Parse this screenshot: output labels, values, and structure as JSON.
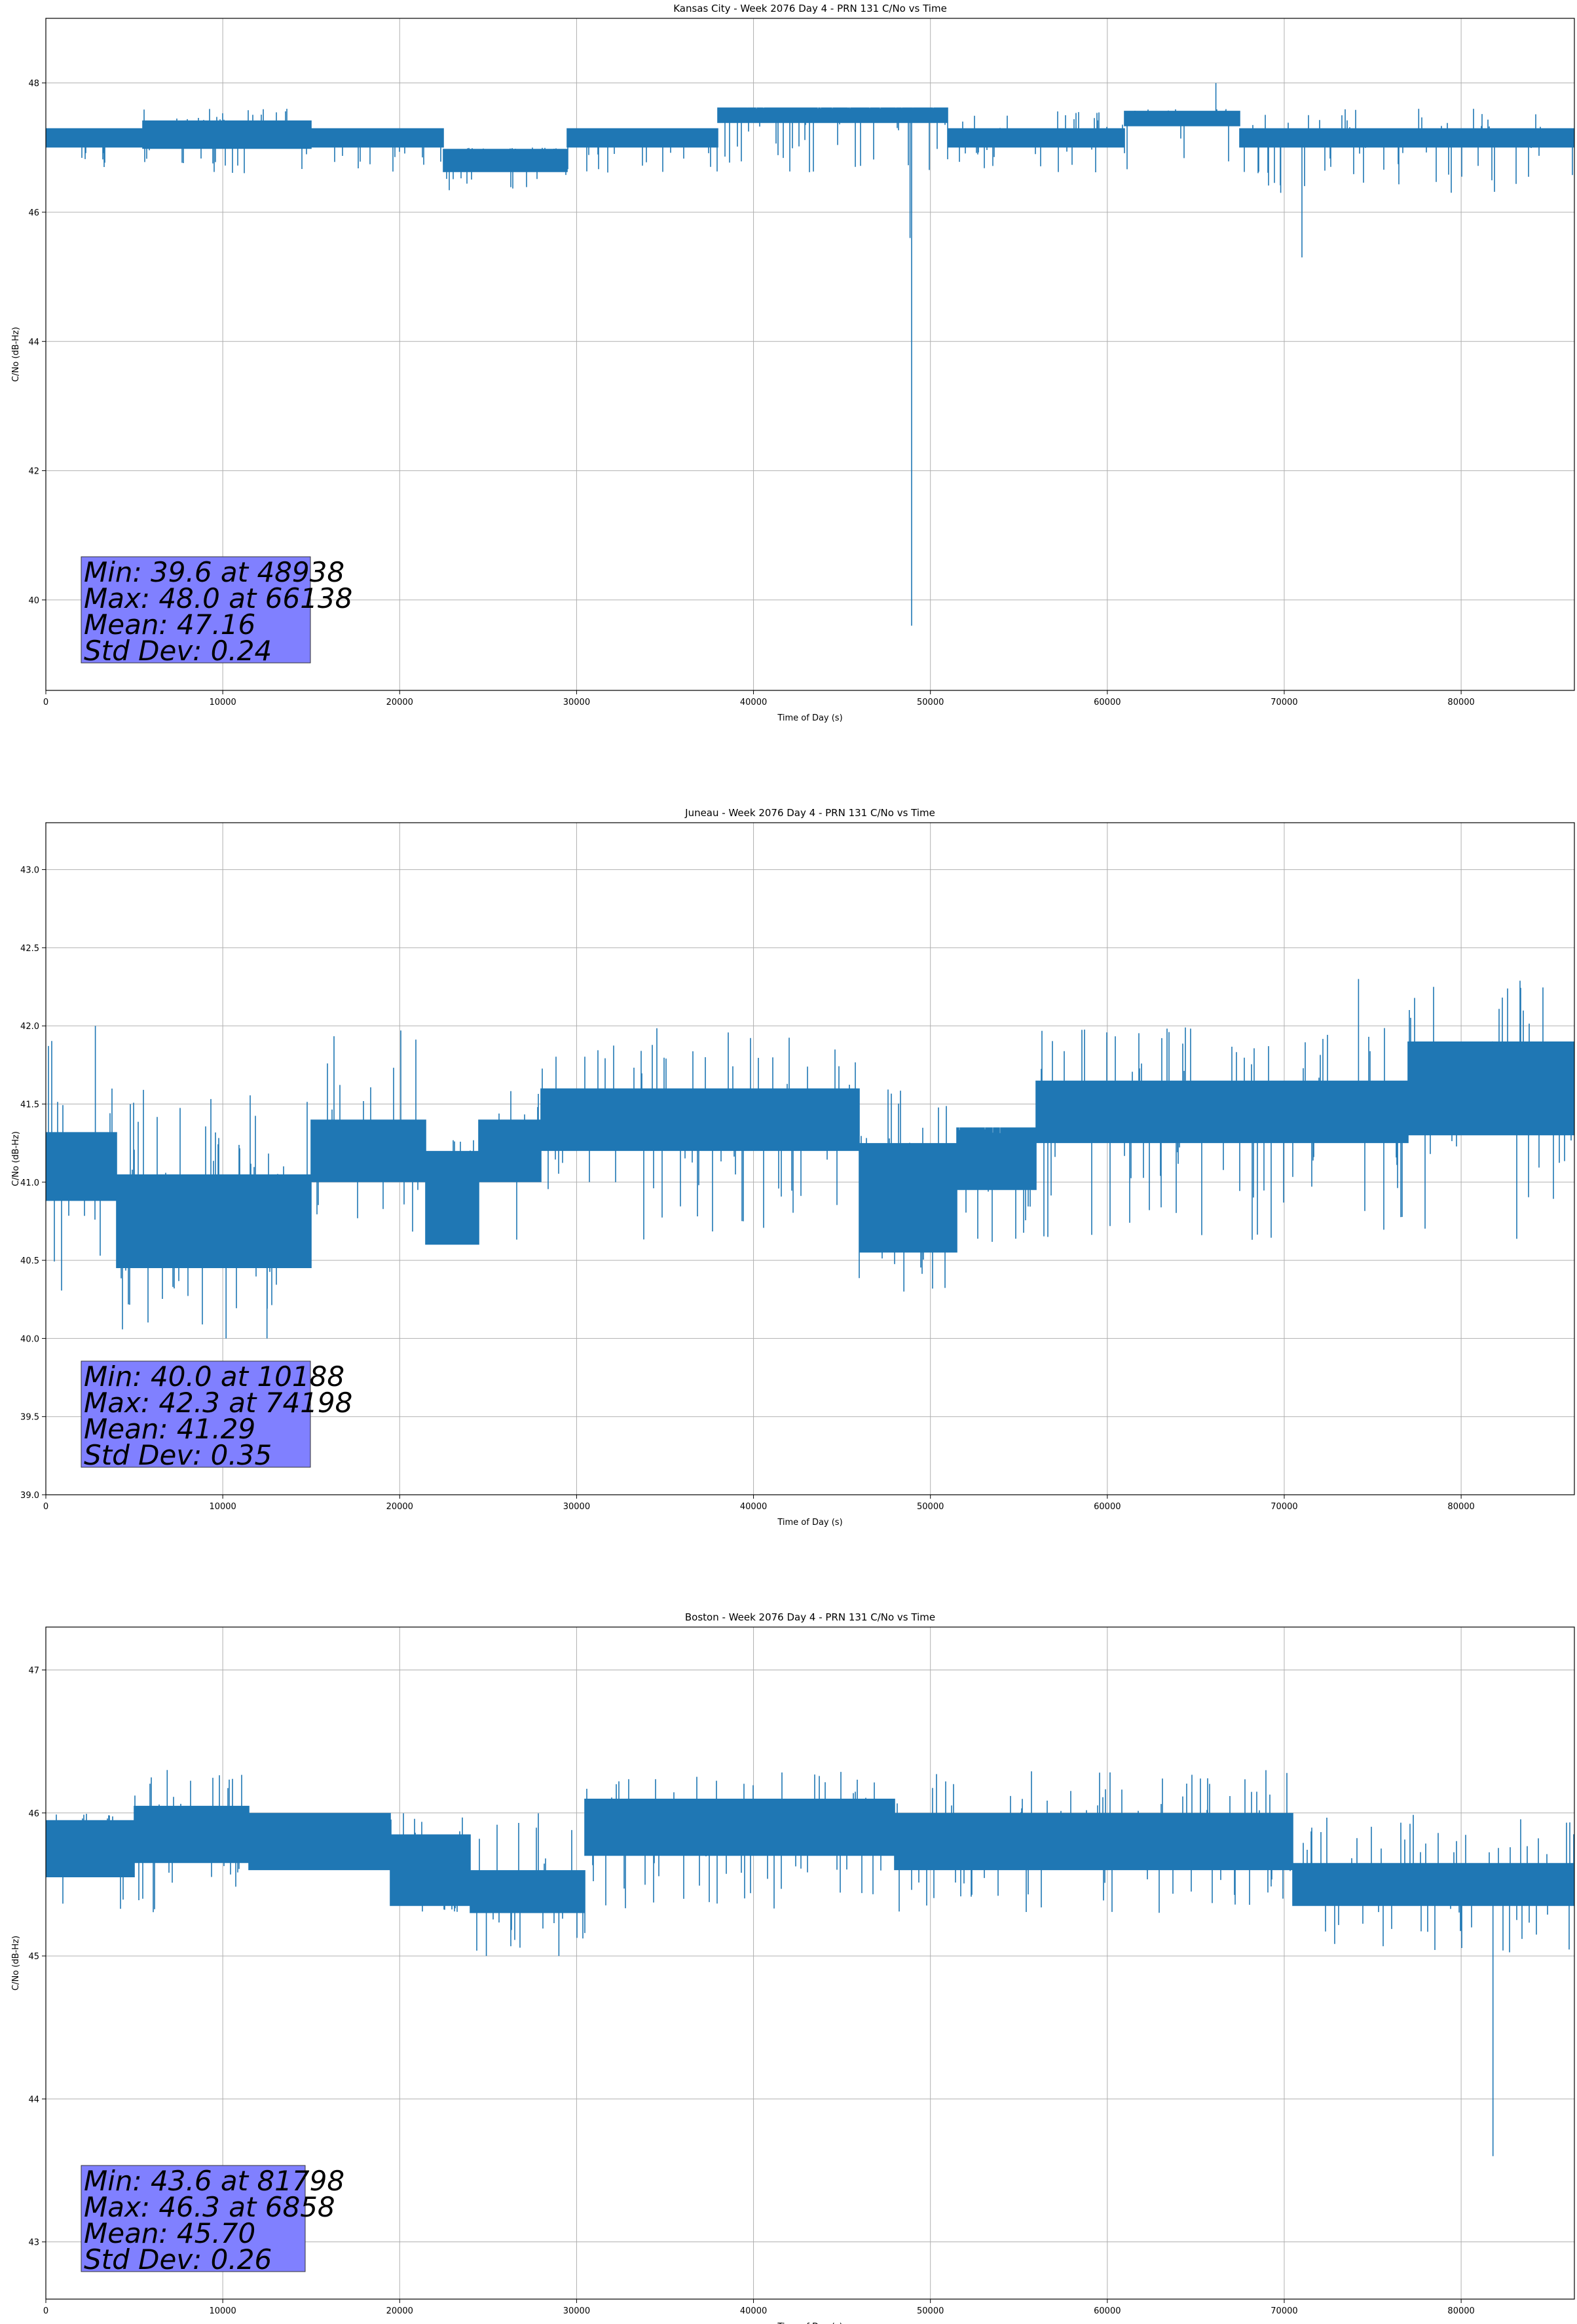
{
  "colors": {
    "line": "#1f77b4",
    "stats_box": "#8080ff",
    "grid": "#b0b0b0"
  },
  "chart_data": [
    {
      "type": "line",
      "title": "Kansas City - Week 2076 Day 4 - PRN 131 C/No vs Time",
      "xlabel": "Time of Day (s)",
      "ylabel": "C/No (dB-Hz)",
      "xlim": [
        0,
        86400
      ],
      "ylim": [
        38.6,
        49.0
      ],
      "xticks": [
        0,
        10000,
        20000,
        30000,
        40000,
        50000,
        60000,
        70000,
        80000
      ],
      "yticks": [
        40,
        42,
        44,
        46,
        48
      ],
      "grid": true,
      "series": [
        {
          "bands": [
            {
              "x": [
                0,
                5500
              ],
              "center": 47.15,
              "half": 0.15,
              "lo": 46.6,
              "hi": 47.3
            },
            {
              "x": [
                5500,
                15000
              ],
              "center": 47.2,
              "half": 0.22,
              "lo": 46.6,
              "hi": 47.6
            },
            {
              "x": [
                15000,
                22500
              ],
              "center": 47.15,
              "half": 0.15,
              "lo": 46.6,
              "hi": 47.3
            },
            {
              "x": [
                22500,
                29500
              ],
              "center": 46.8,
              "half": 0.18,
              "lo": 46.3,
              "hi": 47.0
            },
            {
              "x": [
                29500,
                38000
              ],
              "center": 47.15,
              "half": 0.15,
              "lo": 46.6,
              "hi": 47.3
            },
            {
              "x": [
                38000,
                51000
              ],
              "center": 47.5,
              "half": 0.12,
              "lo": 46.6,
              "hi": 47.6
            },
            {
              "x": [
                51000,
                61000
              ],
              "center": 47.15,
              "half": 0.15,
              "lo": 46.6,
              "hi": 47.6
            },
            {
              "x": [
                61000,
                67500
              ],
              "center": 47.45,
              "half": 0.12,
              "lo": 46.6,
              "hi": 47.6
            },
            {
              "x": [
                67500,
                86400
              ],
              "center": 47.15,
              "half": 0.15,
              "lo": 46.3,
              "hi": 47.6
            }
          ],
          "spikes": [
            {
              "x": 48938,
              "y": 39.6
            },
            {
              "x": 48850,
              "y": 45.6
            },
            {
              "x": 66138,
              "y": 48.0
            },
            {
              "x": 71000,
              "y": 45.3
            },
            {
              "x": 69800,
              "y": 46.3
            },
            {
              "x": 77600,
              "y": 47.6
            },
            {
              "x": 80700,
              "y": 47.6
            }
          ]
        }
      ],
      "stats": [
        "Min: 39.6 at 48938",
        "Max: 48.0 at 66138",
        "Mean: 47.16",
        "Std Dev: 0.24"
      ]
    },
    {
      "type": "line",
      "title": "Juneau - Week 2076 Day 4 - PRN 131 C/No vs Time",
      "xlabel": "Time of Day (s)",
      "ylabel": "C/No (dB-Hz)",
      "xlim": [
        0,
        86400
      ],
      "ylim": [
        39.0,
        43.3
      ],
      "xticks": [
        0,
        10000,
        20000,
        30000,
        40000,
        50000,
        60000,
        70000,
        80000
      ],
      "yticks": [
        39.0,
        39.5,
        40.0,
        40.5,
        41.0,
        41.5,
        42.0,
        42.5,
        43.0
      ],
      "grid": true,
      "series": [
        {
          "bands": [
            {
              "x": [
                0,
                4000
              ],
              "center": 41.1,
              "half": 0.22,
              "lo": 40.3,
              "hi": 42.0
            },
            {
              "x": [
                4000,
                15000
              ],
              "center": 40.75,
              "half": 0.3,
              "lo": 40.0,
              "hi": 41.6
            },
            {
              "x": [
                15000,
                21500
              ],
              "center": 41.2,
              "half": 0.2,
              "lo": 40.6,
              "hi": 42.0
            },
            {
              "x": [
                21500,
                24500
              ],
              "center": 40.9,
              "half": 0.3,
              "lo": 40.6,
              "hi": 41.3
            },
            {
              "x": [
                24500,
                28000
              ],
              "center": 41.2,
              "half": 0.2,
              "lo": 40.6,
              "hi": 41.6
            },
            {
              "x": [
                28000,
                46000
              ],
              "center": 41.4,
              "half": 0.2,
              "lo": 40.6,
              "hi": 42.0
            },
            {
              "x": [
                46000,
                51500
              ],
              "center": 40.9,
              "half": 0.35,
              "lo": 40.3,
              "hi": 41.6
            },
            {
              "x": [
                51500,
                56000
              ],
              "center": 41.15,
              "half": 0.2,
              "lo": 40.6,
              "hi": 41.3
            },
            {
              "x": [
                56000,
                77000
              ],
              "center": 41.45,
              "half": 0.2,
              "lo": 40.6,
              "hi": 42.0
            },
            {
              "x": [
                77000,
                86400
              ],
              "center": 41.6,
              "half": 0.3,
              "lo": 40.6,
              "hi": 42.3
            }
          ],
          "spikes": [
            {
              "x": 10188,
              "y": 40.0
            },
            {
              "x": 74198,
              "y": 42.3
            },
            {
              "x": 2800,
              "y": 42.0
            },
            {
              "x": 12500,
              "y": 40.0
            },
            {
              "x": 48500,
              "y": 40.3
            }
          ]
        }
      ],
      "stats": [
        "Min: 40.0 at 10188",
        "Max: 42.3 at 74198",
        "Mean: 41.29",
        "Std Dev: 0.35"
      ]
    },
    {
      "type": "line",
      "title": "Boston - Week 2076 Day 4 - PRN 131 C/No vs Time",
      "xlabel": "Time of Day (s)",
      "ylabel": "C/No (dB-Hz)",
      "xlim": [
        0,
        86400
      ],
      "ylim": [
        42.6,
        47.3
      ],
      "xticks": [
        0,
        10000,
        20000,
        30000,
        40000,
        50000,
        60000,
        70000,
        80000
      ],
      "yticks": [
        43,
        44,
        45,
        46,
        47
      ],
      "grid": true,
      "series": [
        {
          "bands": [
            {
              "x": [
                0,
                5000
              ],
              "center": 45.75,
              "half": 0.2,
              "lo": 45.3,
              "hi": 46.0
            },
            {
              "x": [
                5000,
                11500
              ],
              "center": 45.85,
              "half": 0.2,
              "lo": 45.3,
              "hi": 46.3
            },
            {
              "x": [
                11500,
                19500
              ],
              "center": 45.8,
              "half": 0.2,
              "lo": 45.6,
              "hi": 46.0
            },
            {
              "x": [
                19500,
                24000
              ],
              "center": 45.6,
              "half": 0.25,
              "lo": 45.3,
              "hi": 46.0
            },
            {
              "x": [
                24000,
                30500
              ],
              "center": 45.45,
              "half": 0.15,
              "lo": 45.0,
              "hi": 46.0
            },
            {
              "x": [
                30500,
                48000
              ],
              "center": 45.9,
              "half": 0.2,
              "lo": 45.3,
              "hi": 46.3
            },
            {
              "x": [
                48000,
                70500
              ],
              "center": 45.8,
              "half": 0.2,
              "lo": 45.3,
              "hi": 46.3
            },
            {
              "x": [
                70500,
                86400
              ],
              "center": 45.5,
              "half": 0.15,
              "lo": 45.0,
              "hi": 46.0
            }
          ],
          "spikes": [
            {
              "x": 81798,
              "y": 43.6
            },
            {
              "x": 6858,
              "y": 46.3
            },
            {
              "x": 24900,
              "y": 45.0
            },
            {
              "x": 29000,
              "y": 45.0
            }
          ]
        }
      ],
      "stats": [
        "Min: 43.6 at 81798",
        "Max: 46.3 at 6858",
        "Mean: 45.70",
        "Std Dev: 0.26"
      ]
    }
  ]
}
